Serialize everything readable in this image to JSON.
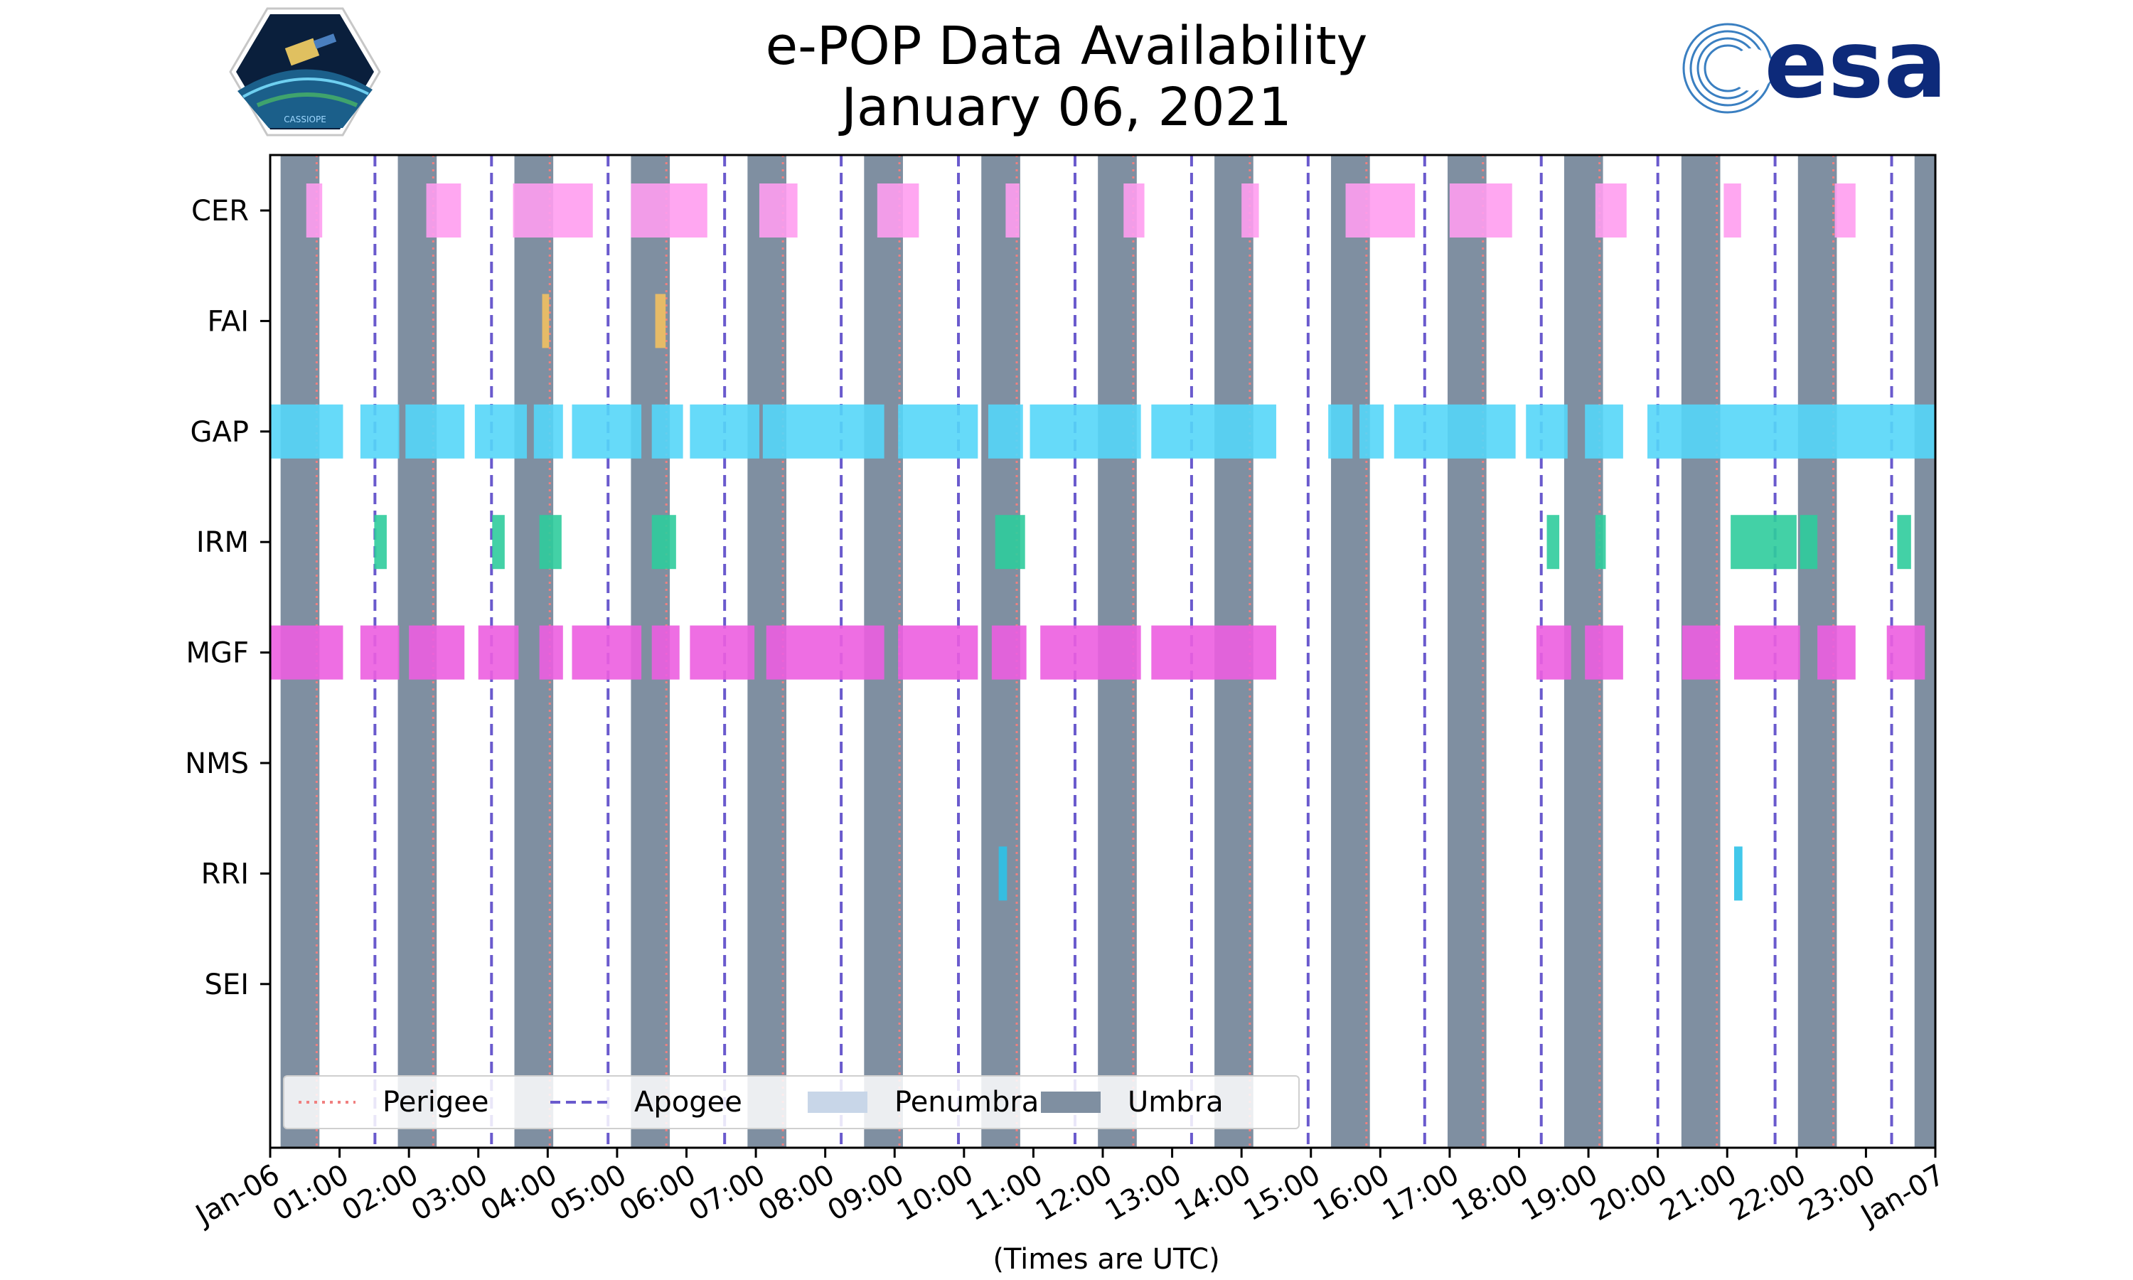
{
  "title": {
    "line1": "e-POP Data Availability",
    "line2": "January 06, 2021"
  },
  "logos": {
    "left": "CASSIOPE",
    "right": "esa"
  },
  "colors": {
    "umbra": "#7f8fa1",
    "penumbra": "#c8d6e8",
    "perigee": "#f08080",
    "apogee": "#6a5acd",
    "CER": "#ff9df0",
    "FAI": "#f2c060",
    "GAP": "#55d6f8",
    "IRM": "#2fcc9c",
    "MGF": "#ec5ee0",
    "RRI": "#2ec2e8"
  },
  "chart_data": {
    "type": "timeline",
    "title": "e-POP Data Availability January 06, 2021",
    "xlabel": "(Times are UTC)",
    "xlim_hours": [
      0,
      24
    ],
    "x_tick_labels": [
      "Jan-06",
      "01:00",
      "02:00",
      "03:00",
      "04:00",
      "05:00",
      "06:00",
      "07:00",
      "08:00",
      "09:00",
      "10:00",
      "11:00",
      "12:00",
      "13:00",
      "14:00",
      "15:00",
      "16:00",
      "17:00",
      "18:00",
      "19:00",
      "20:00",
      "21:00",
      "22:00",
      "23:00",
      "Jan-07"
    ],
    "instruments": [
      "CER",
      "FAI",
      "GAP",
      "IRM",
      "MGF",
      "NMS",
      "RRI",
      "SEI"
    ],
    "umbra_intervals_hours": [
      [
        0.15,
        0.71
      ],
      [
        1.84,
        2.4
      ],
      [
        3.52,
        4.08
      ],
      [
        5.2,
        5.76
      ],
      [
        6.88,
        7.44
      ],
      [
        8.56,
        9.12
      ],
      [
        10.25,
        10.81
      ],
      [
        11.93,
        12.49
      ],
      [
        13.61,
        14.17
      ],
      [
        15.29,
        15.85
      ],
      [
        16.97,
        17.53
      ],
      [
        18.65,
        19.21
      ],
      [
        20.34,
        20.9
      ],
      [
        22.02,
        22.58
      ],
      [
        23.7,
        24.0
      ]
    ],
    "perigee_hours": [
      0.67,
      2.35,
      4.03,
      5.71,
      7.39,
      9.07,
      10.76,
      12.44,
      14.12,
      15.8,
      17.48,
      19.16,
      20.85,
      22.53
    ],
    "apogee_hours": [
      1.51,
      3.19,
      4.87,
      6.55,
      8.23,
      9.92,
      11.6,
      13.28,
      14.96,
      16.64,
      18.32,
      20.0,
      21.69,
      23.37
    ],
    "availability_hours": {
      "CER": [
        [
          0.52,
          0.75
        ],
        [
          2.25,
          2.75
        ],
        [
          3.5,
          4.65
        ],
        [
          5.2,
          6.3
        ],
        [
          7.05,
          7.6
        ],
        [
          8.75,
          9.35
        ],
        [
          10.6,
          10.8
        ],
        [
          12.3,
          12.6
        ],
        [
          14.0,
          14.25
        ],
        [
          15.5,
          16.5
        ],
        [
          17.0,
          17.9
        ],
        [
          19.1,
          19.55
        ],
        [
          20.95,
          21.2
        ],
        [
          22.55,
          22.85
        ]
      ],
      "FAI": [
        [
          3.92,
          4.02
        ],
        [
          5.55,
          5.7
        ]
      ],
      "GAP": [
        [
          0.0,
          1.05
        ],
        [
          1.3,
          1.86
        ],
        [
          1.95,
          2.8
        ],
        [
          2.95,
          3.7
        ],
        [
          3.8,
          4.22
        ],
        [
          4.35,
          5.35
        ],
        [
          5.5,
          5.95
        ],
        [
          6.05,
          7.05
        ],
        [
          7.1,
          8.85
        ],
        [
          9.05,
          10.2
        ],
        [
          10.35,
          10.85
        ],
        [
          10.95,
          12.55
        ],
        [
          12.7,
          14.5
        ],
        [
          15.25,
          15.6
        ],
        [
          15.7,
          16.05
        ],
        [
          16.2,
          17.95
        ],
        [
          18.1,
          18.7
        ],
        [
          18.95,
          19.5
        ],
        [
          19.85,
          24.0
        ]
      ],
      "IRM": [
        [
          1.5,
          1.68
        ],
        [
          3.2,
          3.38
        ],
        [
          3.88,
          4.2
        ],
        [
          5.5,
          5.85
        ],
        [
          10.45,
          10.88
        ],
        [
          18.4,
          18.58
        ],
        [
          19.1,
          19.25
        ],
        [
          21.05,
          22.0
        ],
        [
          22.05,
          22.3
        ],
        [
          23.45,
          23.65
        ]
      ],
      "MGF": [
        [
          0.0,
          1.05
        ],
        [
          1.3,
          1.86
        ],
        [
          2.0,
          2.8
        ],
        [
          3.0,
          3.58
        ],
        [
          3.88,
          4.22
        ],
        [
          4.35,
          5.35
        ],
        [
          5.5,
          5.9
        ],
        [
          6.05,
          6.98
        ],
        [
          7.15,
          8.85
        ],
        [
          9.05,
          10.2
        ],
        [
          10.4,
          10.9
        ],
        [
          11.1,
          12.55
        ],
        [
          12.7,
          14.5
        ],
        [
          18.25,
          18.75
        ],
        [
          18.95,
          19.5
        ],
        [
          20.35,
          20.9
        ],
        [
          21.1,
          22.05
        ],
        [
          22.3,
          22.85
        ],
        [
          23.3,
          23.85
        ]
      ],
      "NMS": [],
      "RRI": [
        [
          10.5,
          10.62
        ],
        [
          21.1,
          21.22
        ]
      ],
      "SEI": []
    },
    "legend": {
      "placement": "lower-left",
      "entries": [
        "Perigee",
        "Apogee",
        "Penumbra",
        "Umbra"
      ]
    }
  }
}
